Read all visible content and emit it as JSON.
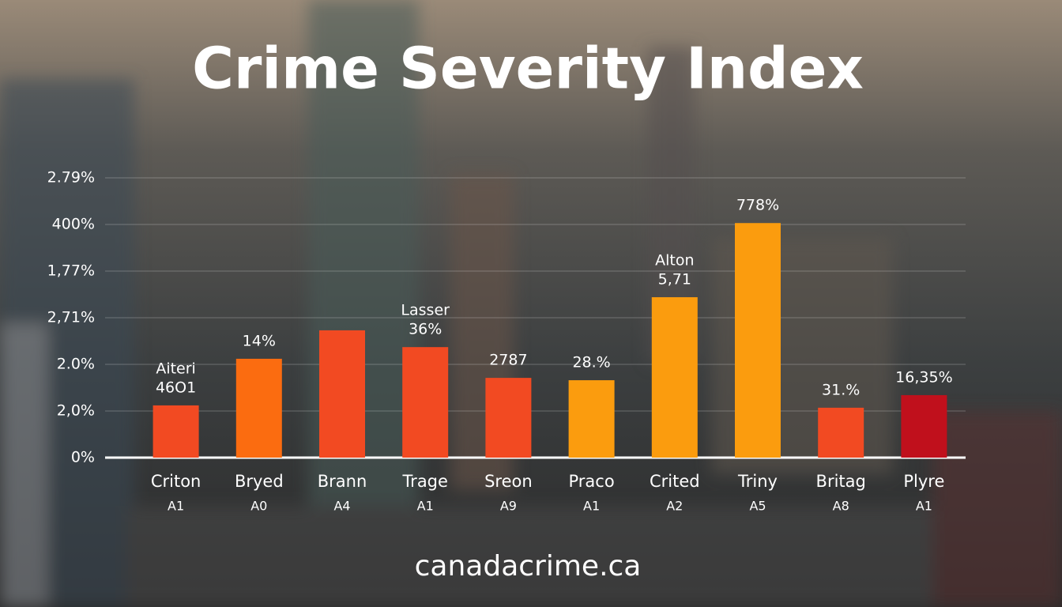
{
  "chart_data": {
    "type": "bar",
    "title": "Crime Severity Index",
    "footer": "canadacrime.ca",
    "categories": [
      "Criton",
      "Bryed",
      "Brann",
      "Trage",
      "Sreon",
      "Praco",
      "Crited",
      "Triny",
      "Britag",
      "Plyre"
    ],
    "subcategories": [
      "A1",
      "A0",
      "A4",
      "A1",
      "A9",
      "A1",
      "A2",
      "A5",
      "A8",
      "A1"
    ],
    "values": [
      1.12,
      2.12,
      2.73,
      2.37,
      1.71,
      1.66,
      3.44,
      5.03,
      1.07,
      1.34
    ],
    "annotations": [
      [
        "Aiteri",
        "46O1"
      ],
      [
        "14%"
      ],
      null,
      [
        "Lasser",
        "36%"
      ],
      [
        "2787"
      ],
      [
        "28.%"
      ],
      [
        "Alton",
        "5,71"
      ],
      [
        "778%"
      ],
      [
        "31.%"
      ],
      [
        "16,35%"
      ]
    ],
    "colors": [
      "#f24a22",
      "#fb6c10",
      "#f24a22",
      "#f24a22",
      "#f24a22",
      "#fb9c0e",
      "#fb9c0e",
      "#fb9c0e",
      "#f24a22",
      "#c0101c"
    ],
    "ylim": [
      0,
      6
    ],
    "yticks": [
      {
        "value": 0,
        "label": "0%"
      },
      {
        "value": 1,
        "label": "2,0%"
      },
      {
        "value": 2,
        "label": "2.0%"
      },
      {
        "value": 3,
        "label": "2,71%"
      },
      {
        "value": 4,
        "label": "1,77%"
      },
      {
        "value": 5,
        "label": "400%"
      },
      {
        "value": 6,
        "label": "2.79%"
      }
    ],
    "grid": true
  }
}
